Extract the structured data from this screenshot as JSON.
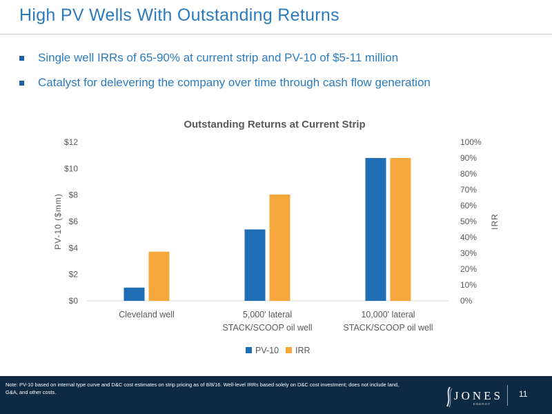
{
  "slide": {
    "title": "High PV Wells With Outstanding Returns",
    "bullets": [
      "Single well IRRs of 65-90% at current strip and PV-10 of $5-11 million",
      "Catalyst for delevering the company over time through cash flow generation"
    ]
  },
  "chart_data": {
    "type": "bar",
    "title": "Outstanding Returns at Current Strip",
    "categories": [
      [
        "Cleveland well"
      ],
      [
        "5,000' lateral",
        "STACK/SCOOP oil well"
      ],
      [
        "10,000' lateral",
        "STACK/SCOOP oil well"
      ]
    ],
    "series": [
      {
        "name": "PV-10",
        "axis": "left",
        "color": "#1f6db5",
        "values": [
          1.0,
          5.4,
          10.8
        ]
      },
      {
        "name": "IRR",
        "axis": "right",
        "color": "#f6a73c",
        "values": [
          0.31,
          0.67,
          0.9
        ]
      }
    ],
    "ylabel": "PV-10 ($mm)",
    "y2label": "IRR",
    "ylim": [
      0,
      12
    ],
    "y2lim": [
      0,
      1
    ],
    "yticks": [
      "$0",
      "$2",
      "$4",
      "$6",
      "$8",
      "$10",
      "$12"
    ],
    "y2ticks": [
      "0%",
      "10%",
      "20%",
      "30%",
      "40%",
      "50%",
      "60%",
      "70%",
      "80%",
      "90%",
      "100%"
    ],
    "grid": false,
    "legend": "bottom-center"
  },
  "footer": {
    "note": "Note: PV-10 based on internal type curve and D&C cost estimates on strip pricing as of 8/8/16. Well-level IRRs based solely on D&C cost investment; does not include land, G&A, and other costs.",
    "logo_text": "JONES",
    "logo_sub": "ENERGY",
    "page_number": "11"
  }
}
